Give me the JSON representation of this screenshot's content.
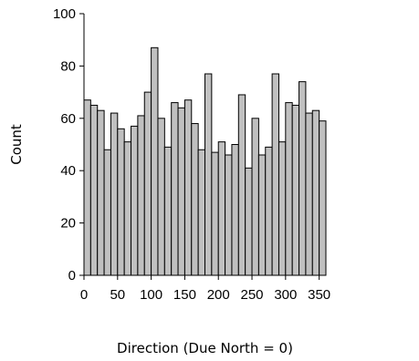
{
  "chart_data": {
    "type": "bar",
    "title": "",
    "xlabel": "Direction (Due North = 0)",
    "ylabel": "Count",
    "bin_width": 10,
    "bin_starts": [
      0,
      10,
      20,
      30,
      40,
      50,
      60,
      70,
      80,
      90,
      100,
      110,
      120,
      130,
      140,
      150,
      160,
      170,
      180,
      190,
      200,
      210,
      220,
      230,
      240,
      250,
      260,
      270,
      280,
      290,
      300,
      310,
      320,
      330,
      340,
      350
    ],
    "values": [
      67,
      65,
      63,
      48,
      62,
      56,
      51,
      57,
      61,
      70,
      87,
      60,
      49,
      66,
      64,
      67,
      58,
      48,
      77,
      47,
      51,
      46,
      50,
      69,
      41,
      60,
      46,
      49,
      77,
      51,
      66,
      65,
      74,
      62,
      63,
      59
    ],
    "xlim": [
      0,
      360
    ],
    "ylim": [
      0,
      100
    ],
    "x_ticks": [
      0,
      50,
      100,
      150,
      200,
      250,
      300,
      350
    ],
    "y_ticks": [
      0,
      20,
      40,
      60,
      80,
      100
    ],
    "grid": false,
    "legend": "none",
    "colors": {
      "bar_fill": "#c0c0c0",
      "bar_stroke": "#000000",
      "axis": "#000000"
    }
  }
}
